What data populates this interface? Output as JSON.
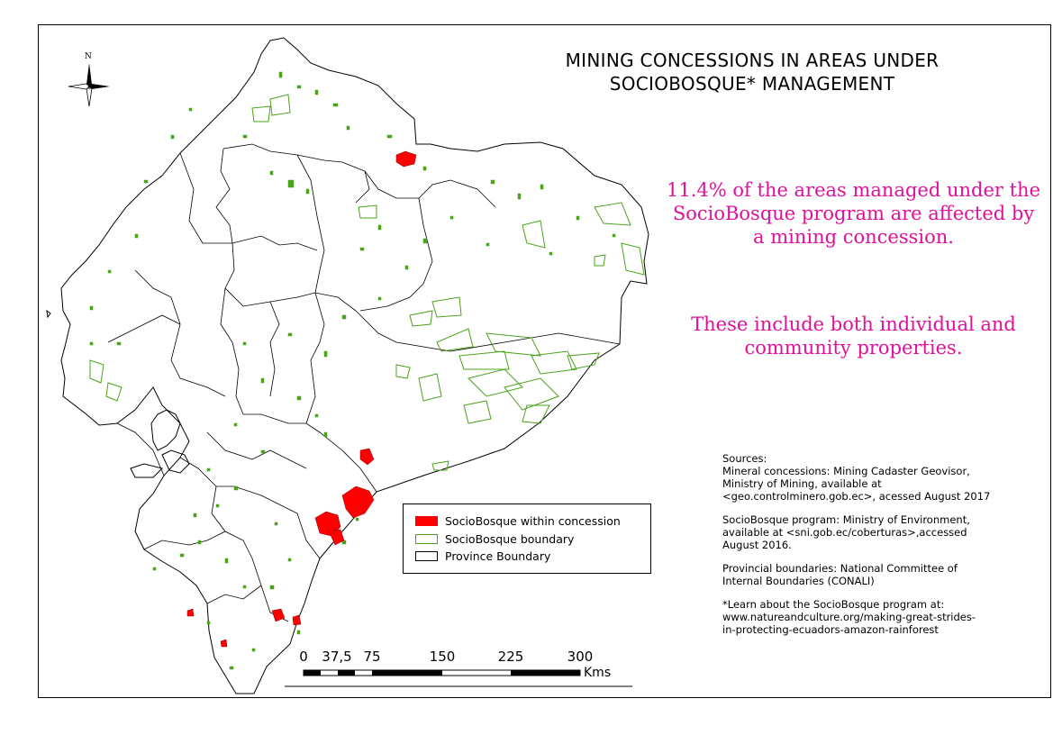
{
  "map": {
    "title_line1": "MINING CONCESSIONS IN AREAS UNDER",
    "title_line2": "SOCIOBOSQUE* MANAGEMENT",
    "compass_label": "N",
    "compass_icon": "north-arrow-icon"
  },
  "annotations": {
    "stat_line1": "11.4% of the areas managed under the",
    "stat_line2": "SocioBosque program are affected by",
    "stat_line3": "a mining concession.",
    "note_line1": "These include both individual and",
    "note_line2": "community properties."
  },
  "legend": {
    "items": [
      {
        "label": "SocioBosque within concession",
        "color": "#ff0000",
        "style": "filled"
      },
      {
        "label": "SocioBosque boundary",
        "color": "#4aa31b",
        "style": "outline"
      },
      {
        "label": "Province Boundary",
        "color": "#000000",
        "style": "outline"
      }
    ]
  },
  "scale_bar": {
    "labels": [
      "0",
      "37,5",
      "75",
      "150",
      "225",
      "300"
    ],
    "unit": "Kms"
  },
  "sources": {
    "heading": "Sources:",
    "mineral_1": "Mineral concessions: Mining Cadaster Geovisor,",
    "mineral_2": "Ministry of Mining, available at",
    "mineral_3": "<geo.controlminero.gob.ec>, acessed August 2017",
    "socio_1": "SocioBosque program: Ministry of Environment,",
    "socio_2": "available at <sni.gob.ec/coberturas>,accessed",
    "socio_3": "August 2016.",
    "prov_1": "Provincial boundaries: National Committee of",
    "prov_2": "Internal Boundaries (CONALI)",
    "learn_1": "*Learn about the SocioBosque program at:",
    "learn_2": "www.natureandculture.org/making-great-strides-",
    "learn_3": "in-protecting-ecuadors-amazon-rainforest"
  },
  "colors": {
    "concession": "#ff0000",
    "sociobosque": "#4aa31b",
    "province": "#000000",
    "highlight_text": "#e0109a"
  }
}
